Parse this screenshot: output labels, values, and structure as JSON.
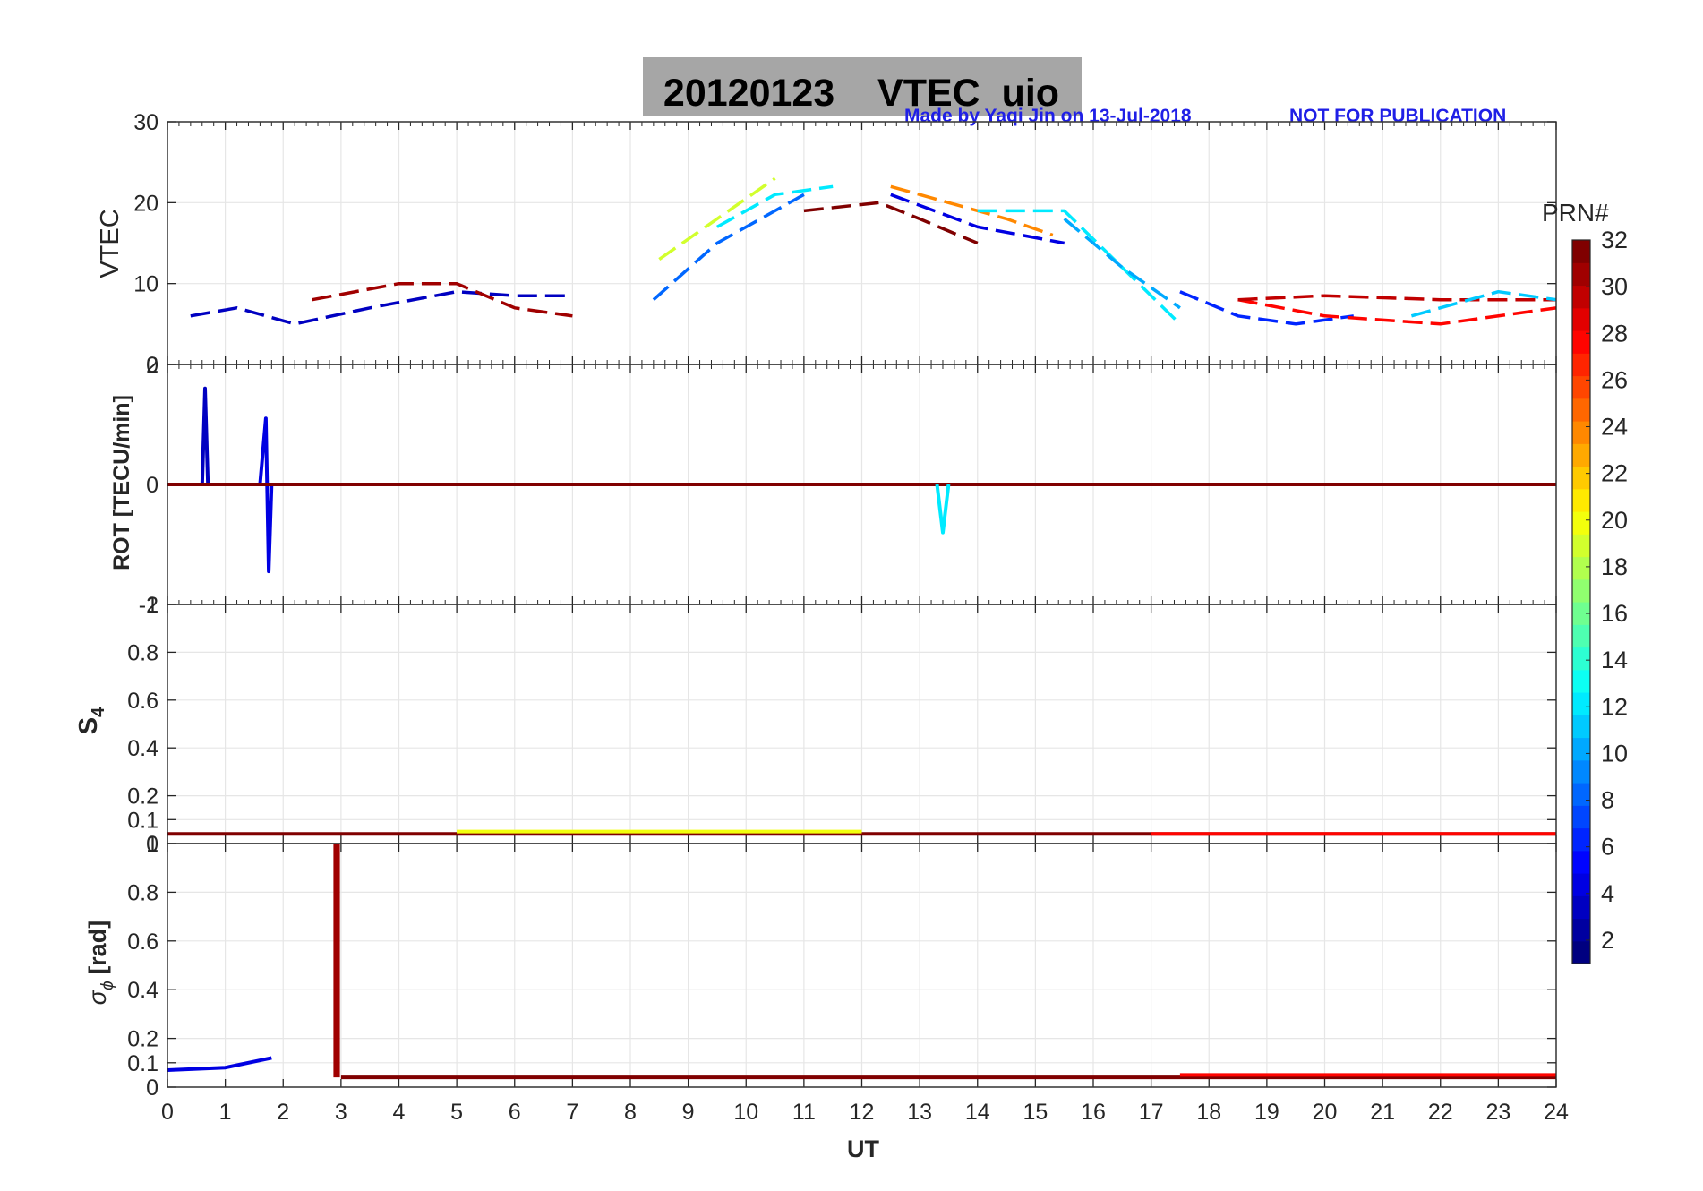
{
  "figure": {
    "title": "20120123    VTEC  uio",
    "credit": "Made by Yaqi Jin on 13-Jul-2018",
    "notice": "NOT FOR PUBLICATION",
    "title_bg": "#a6a6a6",
    "credit_color": "#1f1fe6"
  },
  "chart_data": [
    {
      "id": "vtec",
      "type": "line",
      "ylabel": "VTEC",
      "xlim": [
        0,
        24
      ],
      "ylim": [
        0,
        30
      ],
      "yticks": [
        0,
        10,
        20,
        30
      ],
      "yticklabels": [
        "0",
        "10",
        "20",
        "30"
      ],
      "grid": true,
      "series": [
        {
          "prn": 3,
          "x": [
            0.4,
            1.2,
            2.2,
            3.5,
            5.0,
            6.0,
            7.0
          ],
          "y": [
            6,
            7,
            5,
            7,
            9,
            8.5,
            8.5
          ]
        },
        {
          "prn": 8,
          "x": [
            8.4,
            9.5,
            10.5,
            11.0
          ],
          "y": [
            8,
            15,
            19,
            21
          ]
        },
        {
          "prn": 12,
          "x": [
            9.5,
            10.5,
            11.5
          ],
          "y": [
            17,
            21,
            22
          ]
        },
        {
          "prn": 19,
          "x": [
            8.5,
            9.5,
            10.5
          ],
          "y": [
            13,
            18,
            23
          ]
        },
        {
          "prn": 24,
          "x": [
            12.5,
            13.5,
            14.5,
            15.3
          ],
          "y": [
            22,
            20,
            18,
            16
          ]
        },
        {
          "prn": 32,
          "x": [
            11.0,
            12.3,
            13.0,
            14.0
          ],
          "y": [
            19,
            20,
            18,
            15
          ]
        },
        {
          "prn": 4,
          "x": [
            12.5,
            14.0,
            15.5
          ],
          "y": [
            21,
            17,
            15
          ]
        },
        {
          "prn": 12,
          "x": [
            14.0,
            15.5,
            16.5,
            17.5
          ],
          "y": [
            19,
            19,
            12,
            5
          ]
        },
        {
          "prn": 10,
          "x": [
            15.5,
            16.5,
            17.5
          ],
          "y": [
            18,
            12,
            7
          ]
        },
        {
          "prn": 6,
          "x": [
            17.5,
            18.5,
            19.5,
            20.5
          ],
          "y": [
            9,
            6,
            5,
            6
          ]
        },
        {
          "prn": 28,
          "x": [
            18.5,
            20.0,
            22.0,
            24.0
          ],
          "y": [
            8,
            6,
            5,
            7
          ]
        },
        {
          "prn": 30,
          "x": [
            18.5,
            20.0,
            22.0,
            24.0
          ],
          "y": [
            8,
            8.5,
            8,
            8
          ]
        },
        {
          "prn": 11,
          "x": [
            21.5,
            23.0,
            24.0
          ],
          "y": [
            6,
            9,
            8
          ]
        },
        {
          "prn": 31,
          "x": [
            2.5,
            4.0,
            5.0,
            6.0,
            7.0
          ],
          "y": [
            8,
            10,
            10,
            7,
            6
          ]
        }
      ]
    },
    {
      "id": "rot",
      "type": "line",
      "ylabel": "ROT [TECU/min]",
      "xlim": [
        0,
        24
      ],
      "ylim": [
        -2,
        2
      ],
      "yticks": [
        -2,
        0,
        2
      ],
      "yticklabels": [
        "-2",
        "0",
        "2"
      ],
      "grid": true,
      "series": [
        {
          "prn": 3,
          "x": [
            0.6,
            0.65,
            0.7
          ],
          "y": [
            0,
            1.6,
            0
          ]
        },
        {
          "prn": 4,
          "x": [
            1.6,
            1.7,
            1.75,
            1.8
          ],
          "y": [
            0,
            1.1,
            -1.45,
            0
          ]
        },
        {
          "prn": 32,
          "x": [
            0,
            24
          ],
          "y": [
            0,
            0
          ]
        },
        {
          "prn": 12,
          "x": [
            13.3,
            13.4,
            13.5
          ],
          "y": [
            0,
            -0.8,
            0
          ]
        }
      ]
    },
    {
      "id": "s4",
      "type": "line",
      "ylabel": "S4",
      "xlim": [
        0,
        24
      ],
      "ylim": [
        0,
        1
      ],
      "yticks": [
        0,
        0.1,
        0.2,
        0.4,
        0.6,
        0.8,
        1
      ],
      "yticklabels": [
        "0",
        "0.1",
        "0.2",
        "0.4",
        "0.6",
        "0.8",
        "1"
      ],
      "grid": true,
      "series": [
        {
          "prn": 32,
          "x": [
            0,
            24
          ],
          "y": [
            0.04,
            0.04
          ]
        },
        {
          "prn": 20,
          "x": [
            5,
            12
          ],
          "y": [
            0.05,
            0.05
          ]
        },
        {
          "prn": 28,
          "x": [
            17,
            24
          ],
          "y": [
            0.04,
            0.04
          ]
        }
      ]
    },
    {
      "id": "sigma_phi",
      "type": "line",
      "ylabel": "σϕ [rad]",
      "xlabel": "UT",
      "xlim": [
        0,
        24
      ],
      "ylim": [
        0,
        1
      ],
      "yticks": [
        0,
        0.1,
        0.2,
        0.4,
        0.6,
        0.8,
        1
      ],
      "yticklabels": [
        "0",
        "0.1",
        "0.2",
        "0.4",
        "0.6",
        "0.8",
        "1"
      ],
      "xticks": [
        0,
        1,
        2,
        3,
        4,
        5,
        6,
        7,
        8,
        9,
        10,
        11,
        12,
        13,
        14,
        15,
        16,
        17,
        18,
        19,
        20,
        21,
        22,
        23,
        24
      ],
      "xticklabels": [
        "0",
        "1",
        "2",
        "3",
        "4",
        "5",
        "6",
        "7",
        "8",
        "9",
        "10",
        "11",
        "12",
        "13",
        "14",
        "15",
        "16",
        "17",
        "18",
        "19",
        "20",
        "21",
        "22",
        "23",
        "24"
      ],
      "grid": true,
      "series": [
        {
          "prn": 4,
          "x": [
            0,
            1,
            1.8
          ],
          "y": [
            0.07,
            0.08,
            0.12
          ]
        },
        {
          "prn": 31,
          "x": [
            2.9,
            2.9,
            2.95,
            2.95
          ],
          "y": [
            0.04,
            1.0,
            1.0,
            0.04
          ]
        },
        {
          "prn": 32,
          "x": [
            3,
            24
          ],
          "y": [
            0.04,
            0.04
          ]
        },
        {
          "prn": 28,
          "x": [
            17.5,
            24
          ],
          "y": [
            0.05,
            0.05
          ]
        }
      ]
    }
  ],
  "colorbar": {
    "label": "PRN#",
    "min": 1,
    "max": 32,
    "ticks": [
      2,
      4,
      6,
      8,
      10,
      12,
      14,
      16,
      18,
      20,
      22,
      24,
      26,
      28,
      30,
      32
    ],
    "ticklabels": [
      "2",
      "4",
      "6",
      "8",
      "10",
      "12",
      "14",
      "16",
      "18",
      "20",
      "22",
      "24",
      "26",
      "28",
      "30",
      "32"
    ],
    "colormap": "jet"
  }
}
